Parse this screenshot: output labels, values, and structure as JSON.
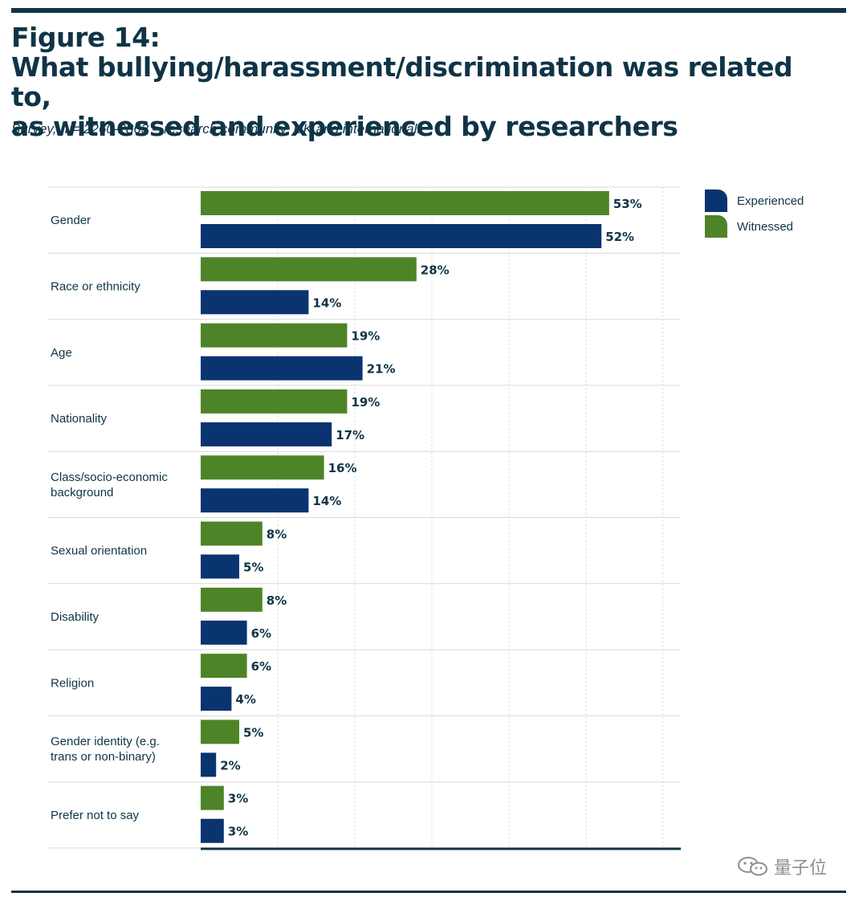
{
  "header": {
    "title_lines": [
      "Figure 14:",
      "What bullying/harassment/discrimination was related to,",
      "as witnessed and experienced by researchers"
    ],
    "subtitle": "Survey, n = 2260-2863 – research community, UK and international."
  },
  "colors": {
    "experienced": "#0a3470",
    "witnessed": "#4e8428",
    "text": "#0f3447",
    "grid": "#d9d9d9"
  },
  "legend": {
    "items": [
      {
        "label": "Experienced",
        "series": "experienced"
      },
      {
        "label": "Witnessed",
        "series": "witnessed"
      }
    ]
  },
  "watermark": {
    "text": "量子位",
    "icon": "wechat-icon"
  },
  "chart_data": {
    "type": "bar",
    "orientation": "horizontal",
    "title": "What bullying/harassment/discrimination was related to, as witnessed and experienced by researchers",
    "xlabel": "",
    "ylabel": "",
    "xlim": [
      0,
      63
    ],
    "grid": true,
    "legend_position": "top-right",
    "value_format": "percent",
    "categories": [
      [
        "Gender"
      ],
      [
        "Race or ethnicity"
      ],
      [
        "Age"
      ],
      [
        "Nationality"
      ],
      [
        "Class/socio-economic",
        "background"
      ],
      [
        "Sexual orientation"
      ],
      [
        "Disability"
      ],
      [
        "Religion"
      ],
      [
        "Gender identity (e.g.",
        "trans or non-binary)"
      ],
      [
        "Prefer not to say"
      ]
    ],
    "series": [
      {
        "name": "Witnessed",
        "key": "witnessed",
        "values": [
          53,
          28,
          19,
          19,
          16,
          8,
          8,
          6,
          5,
          3
        ]
      },
      {
        "name": "Experienced",
        "key": "experienced",
        "values": [
          52,
          14,
          21,
          17,
          14,
          5,
          6,
          4,
          2,
          3
        ]
      }
    ]
  }
}
